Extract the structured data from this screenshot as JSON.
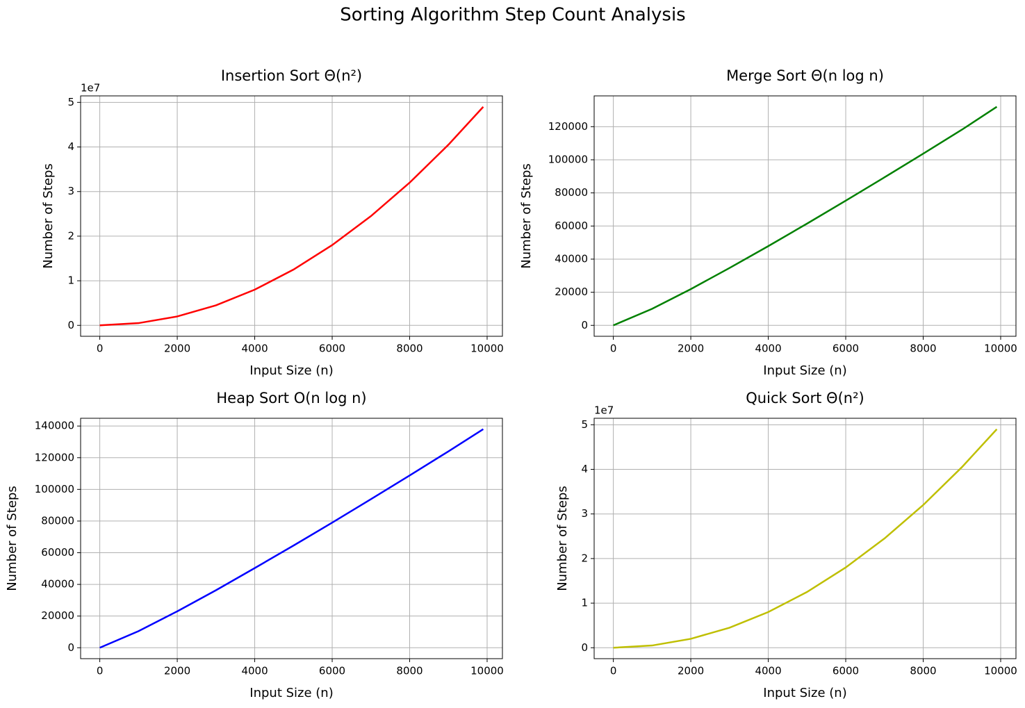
{
  "title": "Sorting Algorithm Step Count Analysis",
  "chart_data": [
    {
      "type": "line",
      "title": "Insertion Sort Θ(n²)",
      "xlabel": "Input Size (n)",
      "ylabel": "Number of Steps",
      "y_offset_label": "1e7",
      "color": "#ff0000",
      "grid": true,
      "x": [
        0,
        1000,
        2000,
        3000,
        4000,
        5000,
        6000,
        7000,
        8000,
        9000,
        9900
      ],
      "values": [
        0,
        500000,
        2000000,
        4500000,
        8000000,
        12500000,
        18000000,
        24500000,
        32000000,
        40500000,
        49005000
      ],
      "xlim": [
        -495,
        10395
      ],
      "xticks": [
        0,
        2000,
        4000,
        6000,
        8000,
        10000
      ],
      "ylim": [
        -2450250,
        51455250
      ],
      "yticks": [
        0,
        {
          "value": 10000000,
          "label": "1"
        },
        {
          "value": 20000000,
          "label": "2"
        },
        {
          "value": 30000000,
          "label": "3"
        },
        {
          "value": 40000000,
          "label": "4"
        },
        {
          "value": 50000000,
          "label": "5"
        }
      ]
    },
    {
      "type": "line",
      "title": "Merge Sort Θ(n log n)",
      "xlabel": "Input Size (n)",
      "ylabel": "Number of Steps",
      "color": "#008000",
      "grid": true,
      "x": [
        0,
        1000,
        2000,
        3000,
        4000,
        5000,
        6000,
        7000,
        8000,
        9000,
        9900
      ],
      "values": [
        0,
        9966,
        21900,
        34650,
        47860,
        61440,
        75300,
        89400,
        103700,
        118200,
        132000
      ],
      "xlim": [
        -495,
        10395
      ],
      "xticks": [
        0,
        2000,
        4000,
        6000,
        8000,
        10000
      ],
      "ylim": [
        -6600,
        138600
      ],
      "yticks": [
        0,
        20000,
        40000,
        60000,
        80000,
        100000,
        120000
      ]
    },
    {
      "type": "line",
      "title": "Heap Sort O(n log n)",
      "xlabel": "Input Size (n)",
      "ylabel": "Number of Steps",
      "color": "#0000ff",
      "grid": true,
      "x": [
        0,
        1000,
        2000,
        3000,
        4000,
        5000,
        6000,
        7000,
        8000,
        9000,
        9900
      ],
      "values": [
        0,
        10500,
        23000,
        36300,
        50300,
        64500,
        79000,
        93800,
        108800,
        124000,
        138000
      ],
      "xlim": [
        -495,
        10395
      ],
      "xticks": [
        0,
        2000,
        4000,
        6000,
        8000,
        10000
      ],
      "ylim": [
        -6900,
        144900
      ],
      "yticks": [
        0,
        20000,
        40000,
        60000,
        80000,
        100000,
        120000,
        140000
      ]
    },
    {
      "type": "line",
      "title": "Quick Sort Θ(n²)",
      "xlabel": "Input Size (n)",
      "ylabel": "Number of Steps",
      "y_offset_label": "1e7",
      "color": "#bfbf00",
      "grid": true,
      "x": [
        0,
        1000,
        2000,
        3000,
        4000,
        5000,
        6000,
        7000,
        8000,
        9000,
        9900
      ],
      "values": [
        0,
        500000,
        2000000,
        4500000,
        8000000,
        12500000,
        18000000,
        24500000,
        32000000,
        40500000,
        49005000
      ],
      "xlim": [
        -495,
        10395
      ],
      "xticks": [
        0,
        2000,
        4000,
        6000,
        8000,
        10000
      ],
      "ylim": [
        -2450250,
        51455250
      ],
      "yticks": [
        0,
        {
          "value": 10000000,
          "label": "1"
        },
        {
          "value": 20000000,
          "label": "2"
        },
        {
          "value": 30000000,
          "label": "3"
        },
        {
          "value": 40000000,
          "label": "4"
        },
        {
          "value": 50000000,
          "label": "5"
        }
      ]
    }
  ]
}
